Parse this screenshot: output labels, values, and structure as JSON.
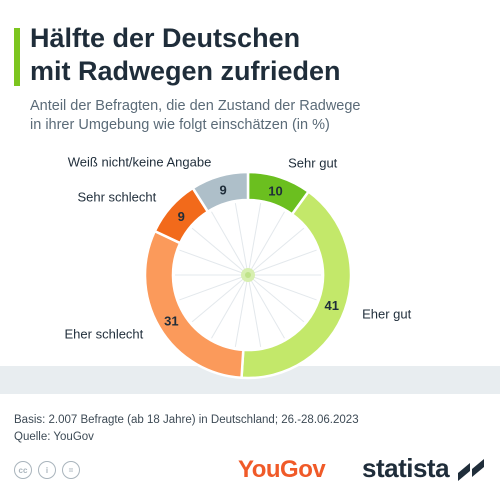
{
  "header": {
    "title_line1": "Hälfte der Deutschen",
    "title_line2": "mit Radwegen zufrieden",
    "subtitle_line1": "Anteil der Befragten, die den Zustand der Radwege",
    "subtitle_line2": "in ihrer Umgebung wie folgt einschätzen (in %)"
  },
  "chart_data": {
    "type": "pie",
    "style": "donut",
    "categories": [
      "Sehr gut",
      "Eher gut",
      "Eher schlecht",
      "Sehr schlecht",
      "Weiß nicht/keine Angabe"
    ],
    "values": [
      10,
      41,
      31,
      9,
      9
    ],
    "colors": [
      "#6bbf1f",
      "#c3e86a",
      "#fb9a5b",
      "#f26a1b",
      "#aebfc9"
    ],
    "title": "Hälfte der Deutschen mit Radwegen zufrieden",
    "legend": "labels-outside"
  },
  "footer": {
    "basis": "Basis: 2.007 Befragte (ab 18 Jahre) in Deutschland; 26.-28.06.2023",
    "source": "Quelle: YouGov"
  },
  "branding": {
    "yougov": "YouGov",
    "statista": "statista"
  },
  "icons": [
    "cc-icon",
    "person-icon",
    "equals-icon",
    "bicycle-wheel-icon",
    "statista-logo-icon"
  ]
}
